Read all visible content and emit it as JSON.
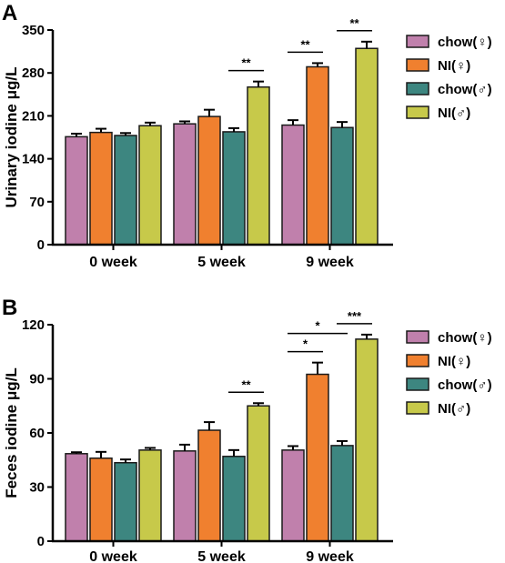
{
  "chart_data": [
    {
      "type": "bar",
      "panel": "A",
      "ylabel": "Urinary iodine μg/L",
      "ylim": [
        0,
        350
      ],
      "yticks": [
        0,
        70,
        140,
        210,
        280,
        350
      ],
      "categories": [
        "0 week",
        "5 week",
        "9 week"
      ],
      "series": [
        {
          "name": "chow(♀)",
          "color": "#c080ac",
          "values": [
            176,
            197,
            195
          ],
          "errors": [
            5,
            4,
            8
          ]
        },
        {
          "name": "NI(♀)",
          "color": "#f0802f",
          "values": [
            183,
            209,
            290
          ],
          "errors": [
            6,
            11,
            6
          ]
        },
        {
          "name": "chow(♂)",
          "color": "#3d8680",
          "values": [
            178,
            184,
            191
          ],
          "errors": [
            4,
            6,
            9
          ]
        },
        {
          "name": "NI(♂)",
          "color": "#c7c94a",
          "values": [
            194,
            257,
            320
          ],
          "errors": [
            5,
            9,
            11
          ]
        }
      ],
      "annotations": [
        {
          "text": "**",
          "category": 1,
          "from": 2,
          "to": 3
        },
        {
          "text": "**",
          "category": 2,
          "from": 0,
          "to": 1
        },
        {
          "text": "**",
          "category": 2,
          "from": 2,
          "to": 3
        }
      ],
      "legend": "right"
    },
    {
      "type": "bar",
      "panel": "B",
      "ylabel": "Feces iodine μg/L",
      "ylim": [
        0,
        120
      ],
      "yticks": [
        0,
        30,
        60,
        90,
        120
      ],
      "categories": [
        "0 week",
        "5 week",
        "9 week"
      ],
      "series": [
        {
          "name": "chow(♀)",
          "color": "#c080ac",
          "values": [
            48.5,
            50,
            50.5
          ],
          "errors": [
            0.8,
            3.5,
            2.2
          ]
        },
        {
          "name": "NI(♀)",
          "color": "#f0802f",
          "values": [
            46,
            61.5,
            92.5
          ],
          "errors": [
            3.5,
            4.5,
            6.5
          ]
        },
        {
          "name": "chow(♂)",
          "color": "#3d8680",
          "values": [
            43.5,
            47,
            53
          ],
          "errors": [
            1.8,
            3.5,
            2.5
          ]
        },
        {
          "name": "NI(♂)",
          "color": "#c7c94a",
          "values": [
            50.5,
            75,
            112
          ],
          "errors": [
            1.2,
            1.5,
            2.5
          ]
        }
      ],
      "annotations": [
        {
          "text": "**",
          "category": 1,
          "from": 2,
          "to": 3
        },
        {
          "text": "*",
          "category": 2,
          "from": 0,
          "to": 1
        },
        {
          "text": "*",
          "category": 2,
          "from": 0,
          "to": 2
        },
        {
          "text": "***",
          "category": 2,
          "from": 2,
          "to": 3
        }
      ],
      "legend": "right"
    }
  ]
}
